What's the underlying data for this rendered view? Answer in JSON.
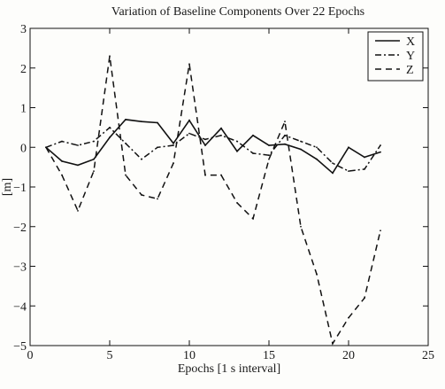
{
  "chart_data": {
    "type": "line",
    "title": "Variation of Baseline Components Over 22 Epochs",
    "xlabel": "Epochs [1 s interval]",
    "ylabel": "[m]",
    "xlim": [
      0,
      25
    ],
    "ylim": [
      -5,
      3
    ],
    "xticks": [
      0,
      5,
      10,
      15,
      20,
      25
    ],
    "yticks": [
      3,
      2,
      1,
      0,
      -1,
      -2,
      -3,
      -4,
      -5
    ],
    "grid": false,
    "legend_position": "top-right",
    "x": [
      1,
      2,
      3,
      4,
      5,
      6,
      7,
      8,
      9,
      10,
      11,
      12,
      13,
      14,
      15,
      16,
      17,
      18,
      19,
      20,
      21,
      22
    ],
    "series": [
      {
        "name": "X",
        "style": "solid",
        "values": [
          0.0,
          -0.35,
          -0.45,
          -0.3,
          0.25,
          0.7,
          0.65,
          0.62,
          0.1,
          0.68,
          0.05,
          0.48,
          -0.1,
          0.3,
          0.05,
          0.08,
          -0.05,
          -0.3,
          -0.65,
          0.0,
          -0.25,
          -0.12
        ]
      },
      {
        "name": "Y",
        "style": "dashdot",
        "values": [
          0.0,
          0.15,
          0.05,
          0.15,
          0.5,
          0.1,
          -0.3,
          0.0,
          0.05,
          0.35,
          0.2,
          0.3,
          0.15,
          -0.15,
          -0.2,
          0.3,
          0.15,
          0.0,
          -0.4,
          -0.6,
          -0.55,
          0.05
        ]
      },
      {
        "name": "Z",
        "style": "dashed",
        "values": [
          0.0,
          -0.7,
          -1.6,
          -0.6,
          2.3,
          -0.7,
          -1.2,
          -1.3,
          -0.4,
          2.1,
          -0.7,
          -0.7,
          -1.4,
          -1.8,
          -0.3,
          0.65,
          -2.0,
          -3.2,
          -4.95,
          -4.3,
          -3.8,
          -2.1
        ]
      }
    ]
  }
}
